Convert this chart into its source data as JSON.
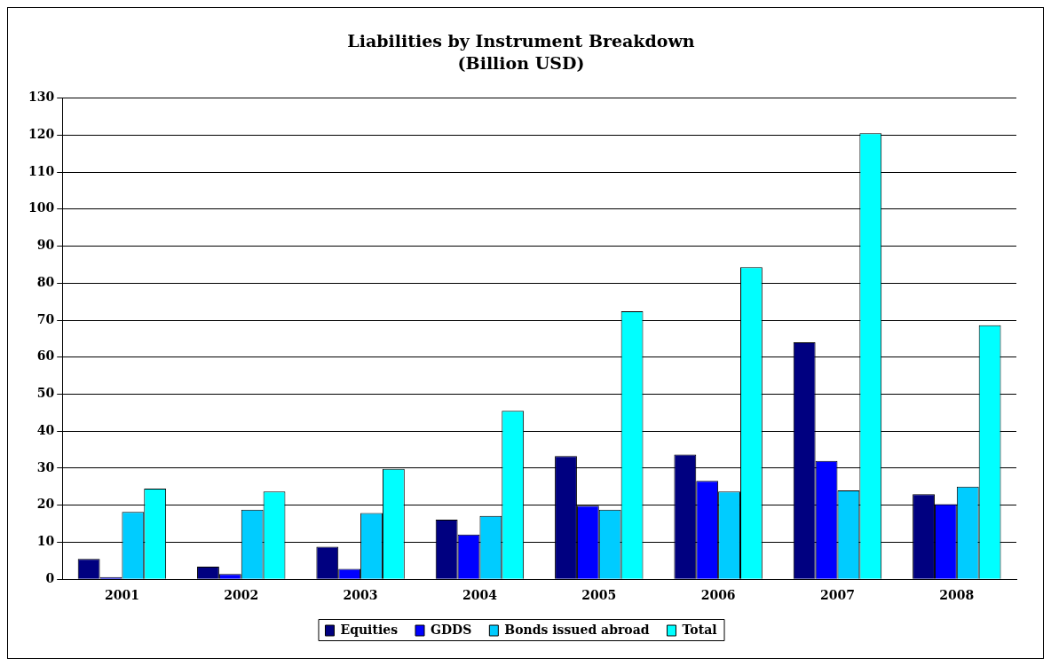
{
  "chart_data": {
    "type": "bar",
    "title": "Liabilities by Instrument Breakdown",
    "subtitle": "(Billion USD)",
    "categories": [
      "2001",
      "2002",
      "2003",
      "2004",
      "2005",
      "2006",
      "2007",
      "2008"
    ],
    "series": [
      {
        "name": "Equities",
        "color": "#000080",
        "values": [
          5.5,
          3.4,
          8.8,
          16.1,
          33.3,
          33.7,
          64.0,
          23.0
        ]
      },
      {
        "name": "GDDS",
        "color": "#0000ff",
        "values": [
          0.6,
          1.4,
          2.8,
          12.1,
          19.9,
          26.6,
          32.0,
          20.3
        ]
      },
      {
        "name": "Bonds issued abroad",
        "color": "#00ccff",
        "values": [
          18.2,
          18.8,
          17.9,
          17.1,
          18.8,
          23.7,
          24.0,
          25.0
        ]
      },
      {
        "name": "Total",
        "color": "#00ffff",
        "values": [
          24.5,
          23.7,
          29.8,
          45.5,
          72.4,
          84.3,
          120.5,
          68.6
        ]
      }
    ],
    "ylim": [
      0,
      130
    ],
    "yticks": [
      0,
      10,
      20,
      30,
      40,
      50,
      60,
      70,
      80,
      90,
      100,
      110,
      120,
      130
    ],
    "grid": "y",
    "legend": "bottom"
  }
}
